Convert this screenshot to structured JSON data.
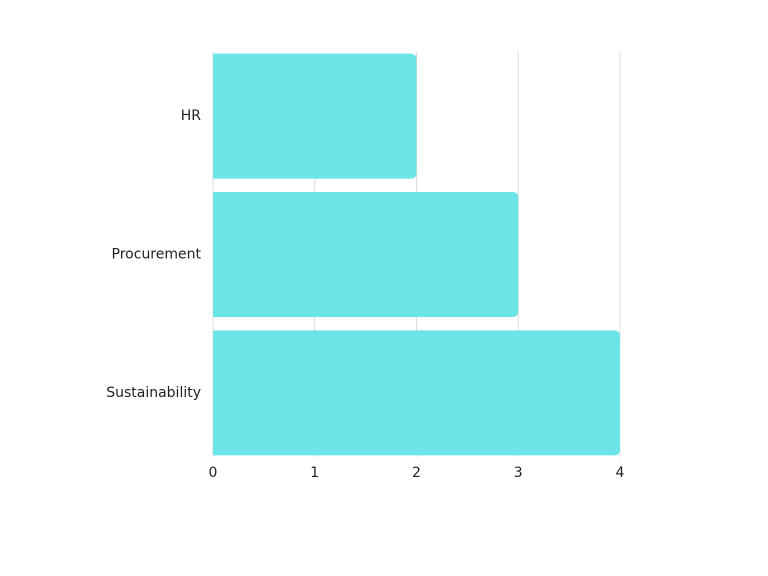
{
  "chart_data": {
    "type": "bar",
    "orientation": "horizontal",
    "categories": [
      "HR",
      "Procurement",
      "Sustainability"
    ],
    "values": [
      2,
      3,
      4
    ],
    "color": "#6ce5e8",
    "xlim": [
      0,
      4
    ],
    "xticks": [
      0,
      1,
      2,
      3,
      4
    ],
    "grid": true
  }
}
